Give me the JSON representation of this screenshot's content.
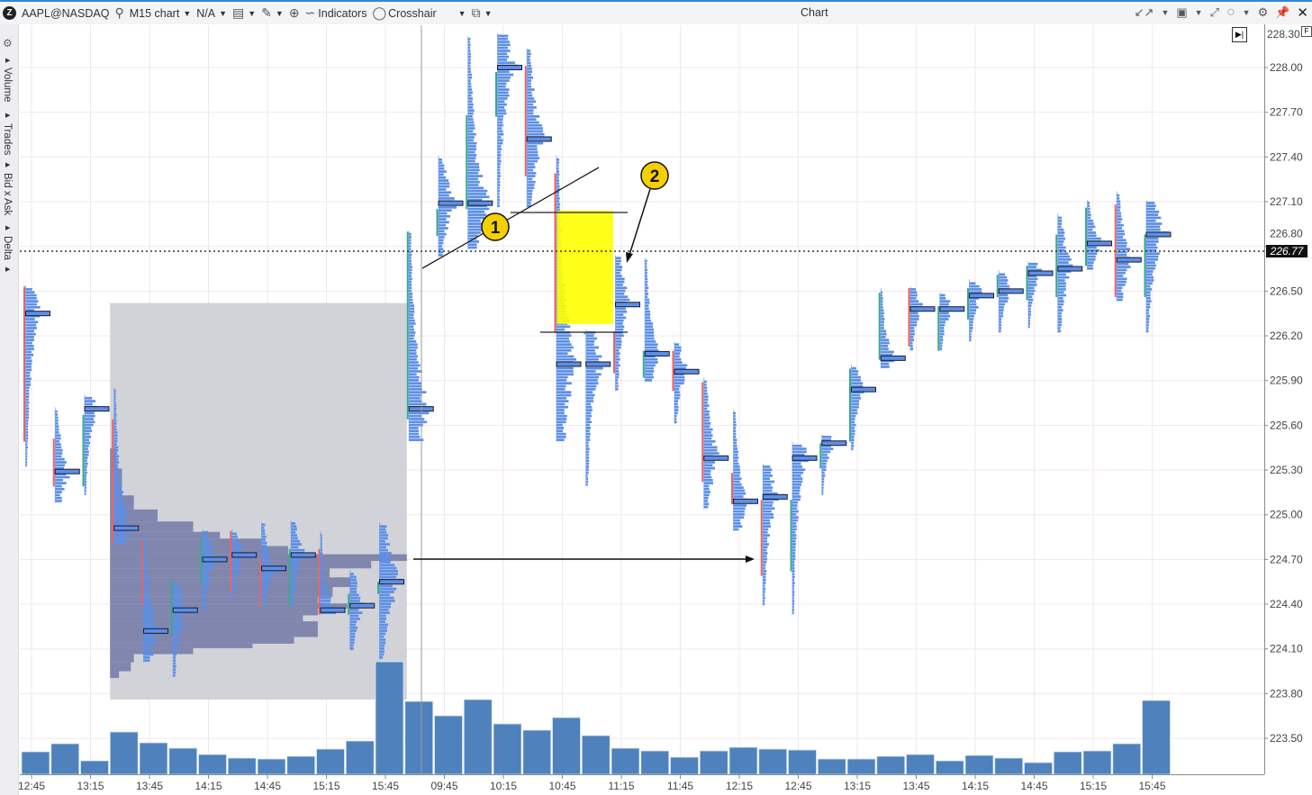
{
  "toolbar": {
    "symbol": "AAPL@NASDAQ",
    "timeframe": "M15 chart",
    "account": "N/A",
    "indicators": "Indicators",
    "crosshair": "Crosshair",
    "window_title": "Chart",
    "logo_letter": "Z",
    "end_button": "▶|",
    "f_marker": "F"
  },
  "sidebar": {
    "tabs": [
      "Volume",
      "Trades",
      "Bid x Ask",
      "Delta"
    ]
  },
  "annotations": {
    "label_1": "1",
    "label_2": "2"
  },
  "colors": {
    "profile": "#5b8fe8",
    "composite_profile": "#8086ad",
    "composite_zone": "#d2d3d9",
    "bull": "#3aaa8a",
    "bear": "#ef6262",
    "volume": "#4f81bd",
    "highlight": "#ffff00",
    "accent": "#2f86d6"
  },
  "chart_data": {
    "type": "footprint",
    "current_price": "226.77",
    "y_ticks": [
      "228.30",
      "228.00",
      "227.70",
      "227.40",
      "227.10",
      "226.80",
      "226.50",
      "226.20",
      "225.90",
      "225.60",
      "225.30",
      "225.00",
      "224.70",
      "224.40",
      "224.10",
      "223.80",
      "223.50"
    ],
    "x_ticks": [
      "12:45",
      "13:15",
      "13:45",
      "14:15",
      "14:45",
      "15:15",
      "15:45",
      "09:45",
      "10:15",
      "10:45",
      "11:15",
      "11:45",
      "12:15",
      "12:45",
      "13:15",
      "13:45",
      "14:15",
      "14:45",
      "15:15",
      "15:45"
    ],
    "candles": [
      {
        "h": 226.54,
        "l": 225.32,
        "o": 226.53,
        "c": 225.49,
        "poc": 226.35
      },
      {
        "h": 225.72,
        "l": 225.08,
        "o": 225.51,
        "c": 225.19,
        "poc": 225.29
      },
      {
        "h": 225.81,
        "l": 225.13,
        "o": 225.19,
        "c": 225.67,
        "poc": 225.71
      },
      {
        "h": 225.85,
        "l": 224.8,
        "o": 225.64,
        "c": 224.81,
        "poc": 224.91
      },
      {
        "h": 224.86,
        "l": 224.01,
        "o": 224.83,
        "c": 224.39,
        "poc": 224.22
      },
      {
        "h": 224.56,
        "l": 223.91,
        "o": 224.19,
        "c": 224.56,
        "poc": 224.36
      },
      {
        "h": 224.9,
        "l": 224.35,
        "o": 224.53,
        "c": 224.86,
        "poc": 224.7
      },
      {
        "h": 224.9,
        "l": 224.44,
        "o": 224.89,
        "c": 224.47,
        "poc": 224.73
      },
      {
        "h": 224.95,
        "l": 224.38,
        "o": 224.71,
        "c": 224.38,
        "poc": 224.64
      },
      {
        "h": 224.96,
        "l": 224.39,
        "o": 224.39,
        "c": 224.77,
        "poc": 224.73
      },
      {
        "h": 224.89,
        "l": 224.33,
        "o": 224.77,
        "c": 224.33,
        "poc": 224.36
      },
      {
        "h": 224.63,
        "l": 224.09,
        "o": 224.33,
        "c": 224.47,
        "poc": 224.39
      },
      {
        "h": 224.95,
        "l": 224.03,
        "o": 224.47,
        "c": 224.55,
        "poc": 224.55
      },
      {
        "h": 226.9,
        "l": 225.49,
        "o": 225.64,
        "c": 226.9,
        "poc": 225.71
      },
      {
        "h": 227.41,
        "l": 226.73,
        "o": 226.87,
        "c": 227.05,
        "poc": 227.09
      },
      {
        "h": 228.21,
        "l": 226.78,
        "o": 227.05,
        "c": 227.68,
        "poc": 227.09
      },
      {
        "h": 228.23,
        "l": 227.06,
        "o": 227.67,
        "c": 227.97,
        "poc": 228.0
      },
      {
        "h": 228.13,
        "l": 227.06,
        "o": 228.01,
        "c": 227.27,
        "poc": 227.52
      },
      {
        "h": 227.41,
        "l": 225.49,
        "o": 227.29,
        "c": 226.22,
        "poc": 226.01
      },
      {
        "h": 226.24,
        "l": 225.19,
        "o": 226.22,
        "c": 226.22,
        "poc": 226.01
      },
      {
        "h": 226.74,
        "l": 225.83,
        "o": 226.23,
        "c": 225.95,
        "poc": 226.41
      },
      {
        "h": 226.72,
        "l": 225.89,
        "o": 225.92,
        "c": 226.1,
        "poc": 226.08
      },
      {
        "h": 226.16,
        "l": 225.61,
        "o": 226.1,
        "c": 225.83,
        "poc": 225.96
      },
      {
        "h": 225.92,
        "l": 225.04,
        "o": 225.89,
        "c": 225.22,
        "poc": 225.38
      },
      {
        "h": 225.7,
        "l": 224.89,
        "o": 225.28,
        "c": 225.07,
        "poc": 225.09
      },
      {
        "h": 225.34,
        "l": 224.39,
        "o": 225.1,
        "c": 224.59,
        "poc": 225.12
      },
      {
        "h": 225.49,
        "l": 224.33,
        "o": 224.62,
        "c": 225.1,
        "poc": 225.38
      },
      {
        "h": 225.54,
        "l": 225.13,
        "o": 225.31,
        "c": 225.48,
        "poc": 225.48
      },
      {
        "h": 226.01,
        "l": 225.43,
        "o": 225.49,
        "c": 225.98,
        "poc": 225.84
      },
      {
        "h": 226.52,
        "l": 225.98,
        "o": 226.04,
        "c": 226.49,
        "poc": 226.05
      },
      {
        "h": 226.53,
        "l": 226.1,
        "o": 226.52,
        "c": 226.13,
        "poc": 226.38
      },
      {
        "h": 226.49,
        "l": 226.1,
        "o": 226.1,
        "c": 226.4,
        "poc": 226.38
      },
      {
        "h": 226.58,
        "l": 226.16,
        "o": 226.31,
        "c": 226.52,
        "poc": 226.47
      },
      {
        "h": 226.64,
        "l": 226.22,
        "o": 226.46,
        "c": 226.61,
        "poc": 226.5
      },
      {
        "h": 226.7,
        "l": 226.25,
        "o": 226.44,
        "c": 226.67,
        "poc": 226.62
      },
      {
        "h": 227.02,
        "l": 226.22,
        "o": 226.46,
        "c": 226.88,
        "poc": 226.65
      },
      {
        "h": 227.11,
        "l": 226.64,
        "o": 226.67,
        "c": 227.06,
        "poc": 226.82
      },
      {
        "h": 227.17,
        "l": 226.43,
        "o": 227.08,
        "c": 226.46,
        "poc": 226.71
      },
      {
        "h": 227.11,
        "l": 226.22,
        "o": 226.46,
        "c": 226.88,
        "poc": 226.88
      }
    ],
    "volume_relative": [
      25,
      34,
      15,
      47,
      35,
      29,
      22,
      18,
      17,
      20,
      28,
      37,
      125,
      81,
      65,
      83,
      56,
      49,
      63,
      43,
      29,
      26,
      19,
      26,
      30,
      28,
      27,
      17,
      17,
      20,
      22,
      15,
      21,
      18,
      13,
      25,
      26,
      34,
      82
    ],
    "composite_zone": {
      "from_candle": 3,
      "to_candle": 12,
      "high": 226.42,
      "low": 223.76
    },
    "composite_profile": [
      [
        225.43,
        0.02
      ],
      [
        225.19,
        0.04
      ],
      [
        225.07,
        0.08
      ],
      [
        225.0,
        0.16
      ],
      [
        224.91,
        0.28
      ],
      [
        224.86,
        0.37
      ],
      [
        224.82,
        0.51
      ],
      [
        224.76,
        0.6
      ],
      [
        224.71,
        1.0
      ],
      [
        224.67,
        0.88
      ],
      [
        224.61,
        0.74
      ],
      [
        224.55,
        0.81
      ],
      [
        224.48,
        0.75
      ],
      [
        224.42,
        0.7
      ],
      [
        224.39,
        0.8
      ],
      [
        224.35,
        0.7
      ],
      [
        224.3,
        0.65
      ],
      [
        224.27,
        0.7
      ],
      [
        224.21,
        0.7
      ],
      [
        224.15,
        0.62
      ],
      [
        224.12,
        0.48
      ],
      [
        224.09,
        0.28
      ],
      [
        224.04,
        0.08
      ],
      [
        223.98,
        0.07
      ],
      [
        223.92,
        0.03
      ]
    ],
    "highlight_zone": {
      "candles": [
        18,
        19
      ],
      "high": 227.04,
      "low": 226.28
    },
    "level_lines": [
      227.04,
      226.24
    ],
    "grid": true
  }
}
